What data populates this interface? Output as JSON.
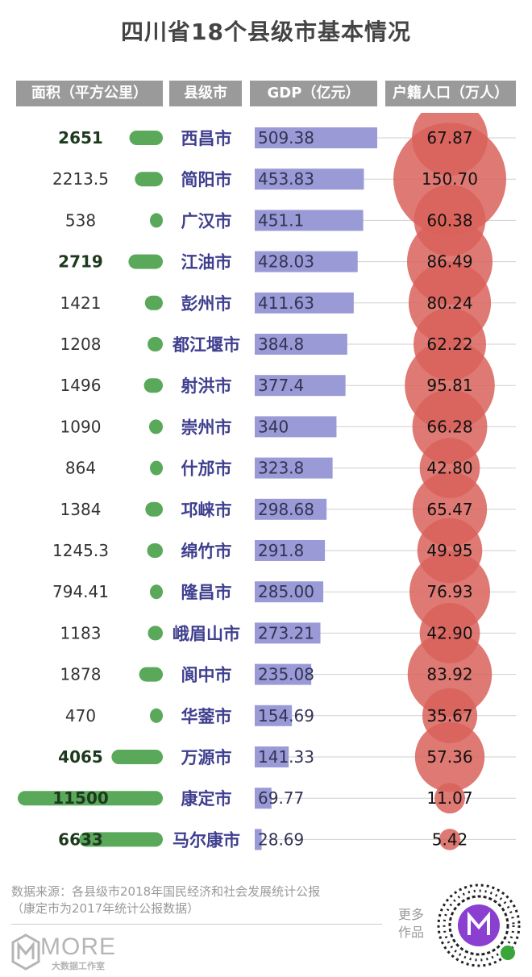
{
  "title": "四川省18个县级市基本情况",
  "headers": {
    "area": "面积（平方公里）",
    "city": "县级市",
    "gdp": "GDP（亿元）",
    "population": "户籍人口（万人）"
  },
  "colors": {
    "area_bar": "#5aa85a",
    "gdp_bar": "#9a9ad6",
    "pop_bubble": "#d9625a",
    "city_text": "#3f3f8f",
    "header_bg": "#9a9a9a"
  },
  "chart_data": {
    "type": "table",
    "columns": [
      "面积（平方公里）",
      "县级市",
      "GDP（亿元）",
      "户籍人口（万人）"
    ],
    "rows": [
      {
        "area": "2651",
        "area_value": 2651,
        "area_bold": true,
        "city": "西昌市",
        "gdp": "509.38",
        "gdp_value": 509.38,
        "pop": "67.87",
        "pop_value": 67.87
      },
      {
        "area": "2213.5",
        "area_value": 2213.5,
        "area_bold": false,
        "city": "简阳市",
        "gdp": "453.83",
        "gdp_value": 453.83,
        "pop": "150.70",
        "pop_value": 150.7
      },
      {
        "area": "538",
        "area_value": 538,
        "area_bold": false,
        "city": "广汉市",
        "gdp": "451.1",
        "gdp_value": 451.1,
        "pop": "60.38",
        "pop_value": 60.38
      },
      {
        "area": "2719",
        "area_value": 2719,
        "area_bold": true,
        "city": "江油市",
        "gdp": "428.03",
        "gdp_value": 428.03,
        "pop": "86.49",
        "pop_value": 86.49
      },
      {
        "area": "1421",
        "area_value": 1421,
        "area_bold": false,
        "city": "彭州市",
        "gdp": "411.63",
        "gdp_value": 411.63,
        "pop": "80.24",
        "pop_value": 80.24
      },
      {
        "area": "1208",
        "area_value": 1208,
        "area_bold": false,
        "city": "都江堰市",
        "gdp": "384.8",
        "gdp_value": 384.8,
        "pop": "62.22",
        "pop_value": 62.22
      },
      {
        "area": "1496",
        "area_value": 1496,
        "area_bold": false,
        "city": "射洪市",
        "gdp": "377.4",
        "gdp_value": 377.4,
        "pop": "95.81",
        "pop_value": 95.81
      },
      {
        "area": "1090",
        "area_value": 1090,
        "area_bold": false,
        "city": "崇州市",
        "gdp": "340",
        "gdp_value": 340,
        "pop": "66.28",
        "pop_value": 66.28
      },
      {
        "area": "864",
        "area_value": 864,
        "area_bold": false,
        "city": "什邡市",
        "gdp": "323.8",
        "gdp_value": 323.8,
        "pop": "42.80",
        "pop_value": 42.8
      },
      {
        "area": "1384",
        "area_value": 1384,
        "area_bold": false,
        "city": "邛崃市",
        "gdp": "298.68",
        "gdp_value": 298.68,
        "pop": "65.47",
        "pop_value": 65.47
      },
      {
        "area": "1245.3",
        "area_value": 1245.3,
        "area_bold": false,
        "city": "绵竹市",
        "gdp": "291.8",
        "gdp_value": 291.8,
        "pop": "49.95",
        "pop_value": 49.95
      },
      {
        "area": "794.41",
        "area_value": 794.41,
        "area_bold": false,
        "city": "隆昌市",
        "gdp": "285.00",
        "gdp_value": 285.0,
        "pop": "76.93",
        "pop_value": 76.93
      },
      {
        "area": "1183",
        "area_value": 1183,
        "area_bold": false,
        "city": "峨眉山市",
        "gdp": "273.21",
        "gdp_value": 273.21,
        "pop": "42.90",
        "pop_value": 42.9
      },
      {
        "area": "1878",
        "area_value": 1878,
        "area_bold": false,
        "city": "阆中市",
        "gdp": "235.08",
        "gdp_value": 235.08,
        "pop": "83.92",
        "pop_value": 83.92
      },
      {
        "area": "470",
        "area_value": 470,
        "area_bold": false,
        "city": "华蓥市",
        "gdp": "154.69",
        "gdp_value": 154.69,
        "pop": "35.67",
        "pop_value": 35.67
      },
      {
        "area": "4065",
        "area_value": 4065,
        "area_bold": true,
        "city": "万源市",
        "gdp": "141.33",
        "gdp_value": 141.33,
        "pop": "57.36",
        "pop_value": 57.36
      },
      {
        "area": "11500",
        "area_value": 11500,
        "area_bold": true,
        "city": "康定市",
        "gdp": "69.77",
        "gdp_value": 69.77,
        "pop": "11.07",
        "pop_value": 11.07
      },
      {
        "area": "6633",
        "area_value": 6633,
        "area_bold": true,
        "city": "马尔康市",
        "gdp": "28.69",
        "gdp_value": 28.69,
        "pop": "5.42",
        "pop_value": 5.42
      }
    ]
  },
  "footer": {
    "source_line1": "数据来源：各县级市2018年国民经济和社会发展统计公报",
    "source_line2": "（康定市为2017年统计公报数据）",
    "logo_text": "MORE",
    "logo_subtext": "大数据工作室",
    "more_works": "更多作品",
    "qr_icon": "mini-program-qr-code"
  }
}
